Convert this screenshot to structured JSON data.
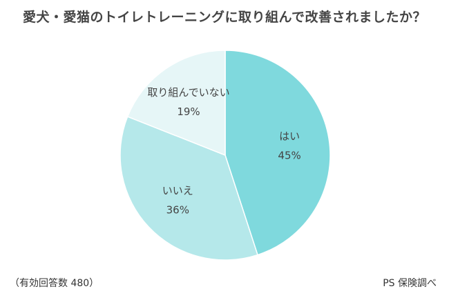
{
  "chart_data": {
    "type": "pie",
    "title": "愛犬・愛猫のトイレトレーニングに取り組んで改善されましたか？",
    "categories": [
      "はい",
      "いいえ",
      "取り組んでいない"
    ],
    "values": [
      45,
      36,
      19
    ],
    "value_labels": [
      "45%",
      "36%",
      "19%"
    ],
    "colors": [
      "#7fd9dd",
      "#b5e8ea",
      "#e6f6f7"
    ],
    "start": "12 o'clock",
    "direction": "clockwise"
  },
  "footer": {
    "sample": "（有効回答数 480）",
    "source": "PS 保険調べ"
  }
}
